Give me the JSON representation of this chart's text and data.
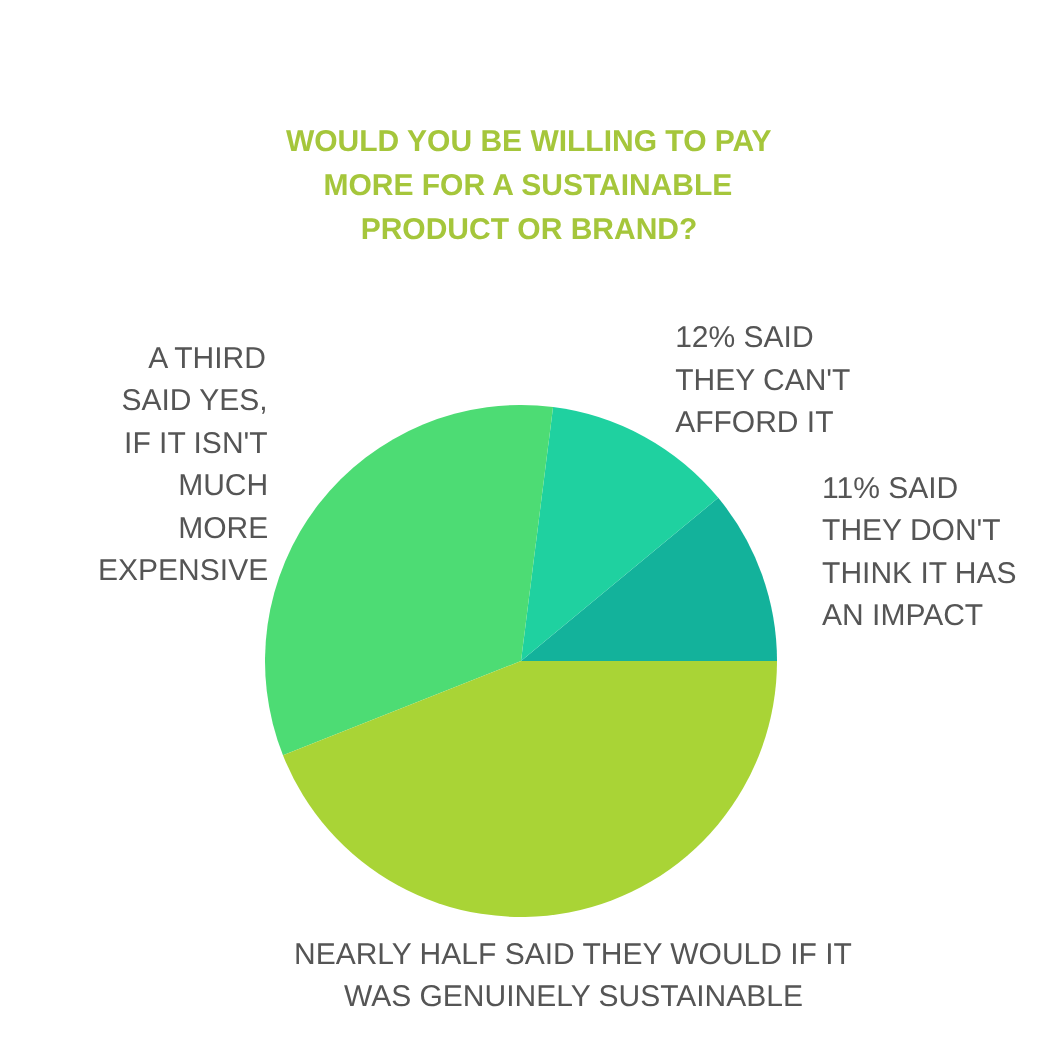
{
  "chart_data": {
    "type": "pie",
    "title": "WOULD YOU BE WILLING TO PAY\nMORE FOR A SUSTAINABLE\nPRODUCT OR BRAND?",
    "categories": [
      "11% SAID\nTHEY DON'T\nTHINK IT HAS\nAN IMPACT",
      "12% SAID\nTHEY CAN'T\nAFFORD IT",
      "A THIRD\nSAID YES,\nIF IT ISN'T\nMUCH\nMORE\nEXPENSIVE",
      "NEARLY HALF SAID THEY WOULD IF IT\nWAS GENUINELY SUSTAINABLE"
    ],
    "values": [
      11,
      12,
      33,
      44
    ],
    "colors": [
      "#13b29b",
      "#1fd1a0",
      "#4ddc74",
      "#a9d436"
    ]
  }
}
